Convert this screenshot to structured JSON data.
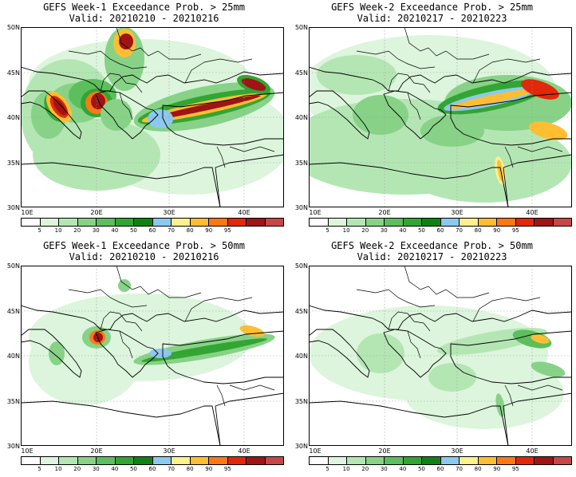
{
  "colorbar": {
    "colors": [
      "#ffffff",
      "#dcf5dc",
      "#b4e6b4",
      "#87d287",
      "#5cbe5c",
      "#32a532",
      "#0f8214",
      "#8cc8f0",
      "#fff08c",
      "#ffbe32",
      "#ff7814",
      "#e1280a",
      "#a01414",
      "#c84646"
    ],
    "ticks": [
      "5",
      "10",
      "20",
      "30",
      "40",
      "50",
      "60",
      "70",
      "80",
      "90",
      "95"
    ]
  },
  "axes": {
    "lat_labels": [
      "50N",
      "45N",
      "40N",
      "35N",
      "30N"
    ],
    "lon_labels": [
      "10E",
      "20E",
      "30E",
      "40E"
    ]
  },
  "panels": [
    {
      "title": "GEFS Week-1 Exceedance Prob. > 25mm",
      "valid": "Valid: 20210210 - 20210216"
    },
    {
      "title": "GEFS Week-2 Exceedance Prob. > 25mm",
      "valid": "Valid: 20210217 - 20210223"
    },
    {
      "title": "GEFS Week-1 Exceedance Prob. > 50mm",
      "valid": "Valid: 20210210 - 20210216"
    },
    {
      "title": "GEFS Week-2 Exceedance Prob. > 50mm",
      "valid": "Valid: 20210217 - 20210223"
    }
  ]
}
